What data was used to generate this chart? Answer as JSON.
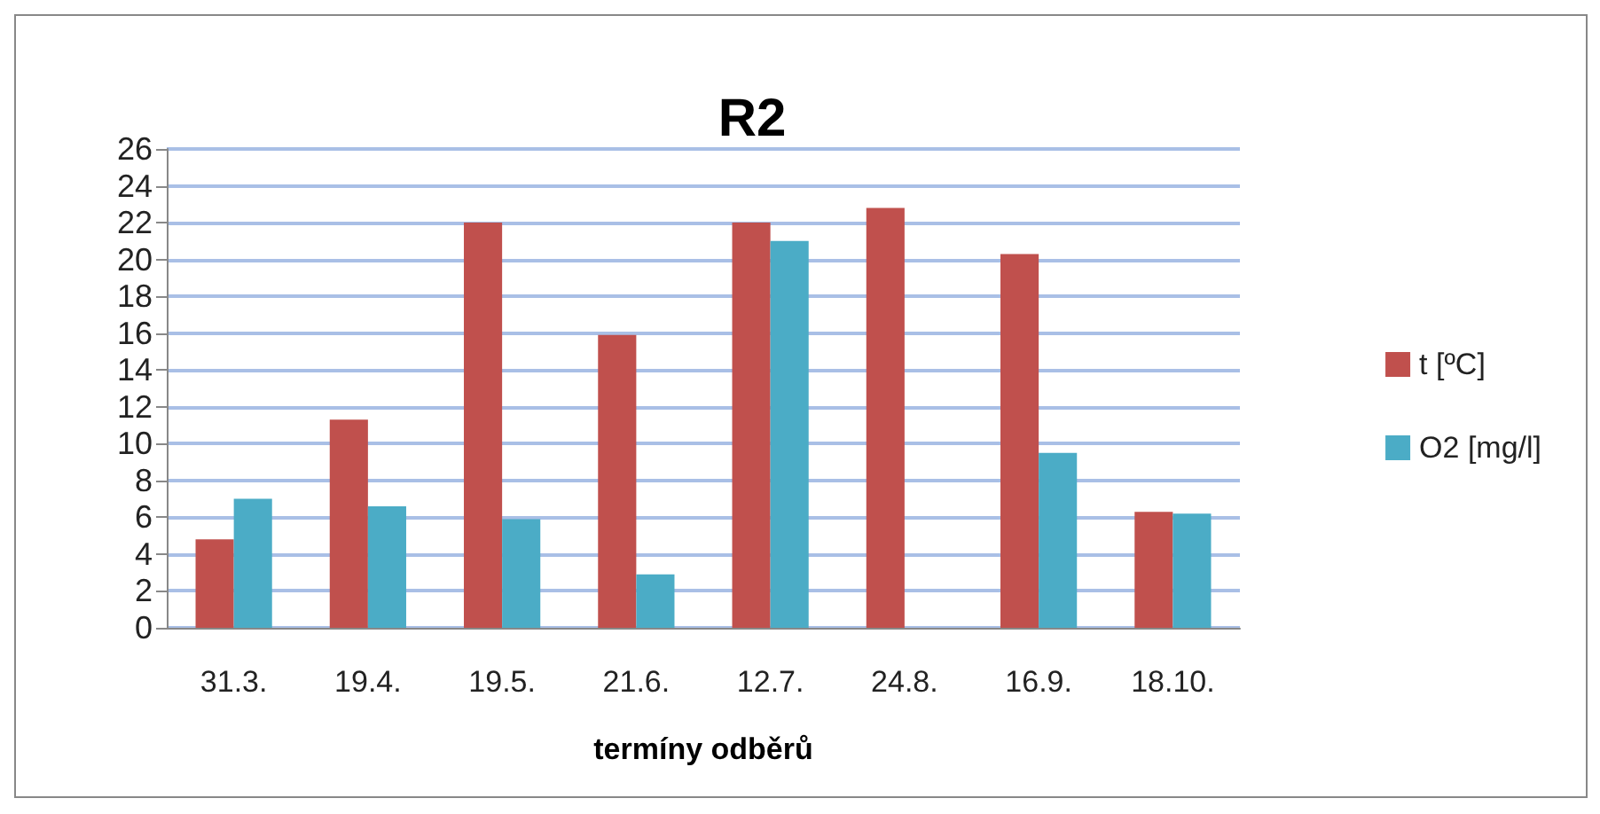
{
  "chart_data": {
    "type": "bar",
    "title": "R2",
    "xlabel": "termíny odběrů",
    "categories": [
      "31.3.",
      "19.4.",
      "19.5.",
      "21.6.",
      "12.7.",
      "24.8.",
      "16.9.",
      "18.10."
    ],
    "series": [
      {
        "name": "t [ºC]",
        "color": "#c0504d",
        "values": [
          4.8,
          11.3,
          22,
          15.9,
          22,
          22.8,
          20.3,
          6.3
        ]
      },
      {
        "name": "O2 [mg/l]",
        "color": "#4bacc6",
        "values": [
          7.0,
          6.6,
          5.9,
          2.9,
          21.0,
          null,
          9.5,
          6.2
        ]
      }
    ],
    "ylim": [
      0,
      26
    ],
    "yticks": [
      0,
      2,
      4,
      6,
      8,
      10,
      12,
      14,
      16,
      18,
      20,
      22,
      24,
      26
    ],
    "grid": "y",
    "legend": "right"
  }
}
